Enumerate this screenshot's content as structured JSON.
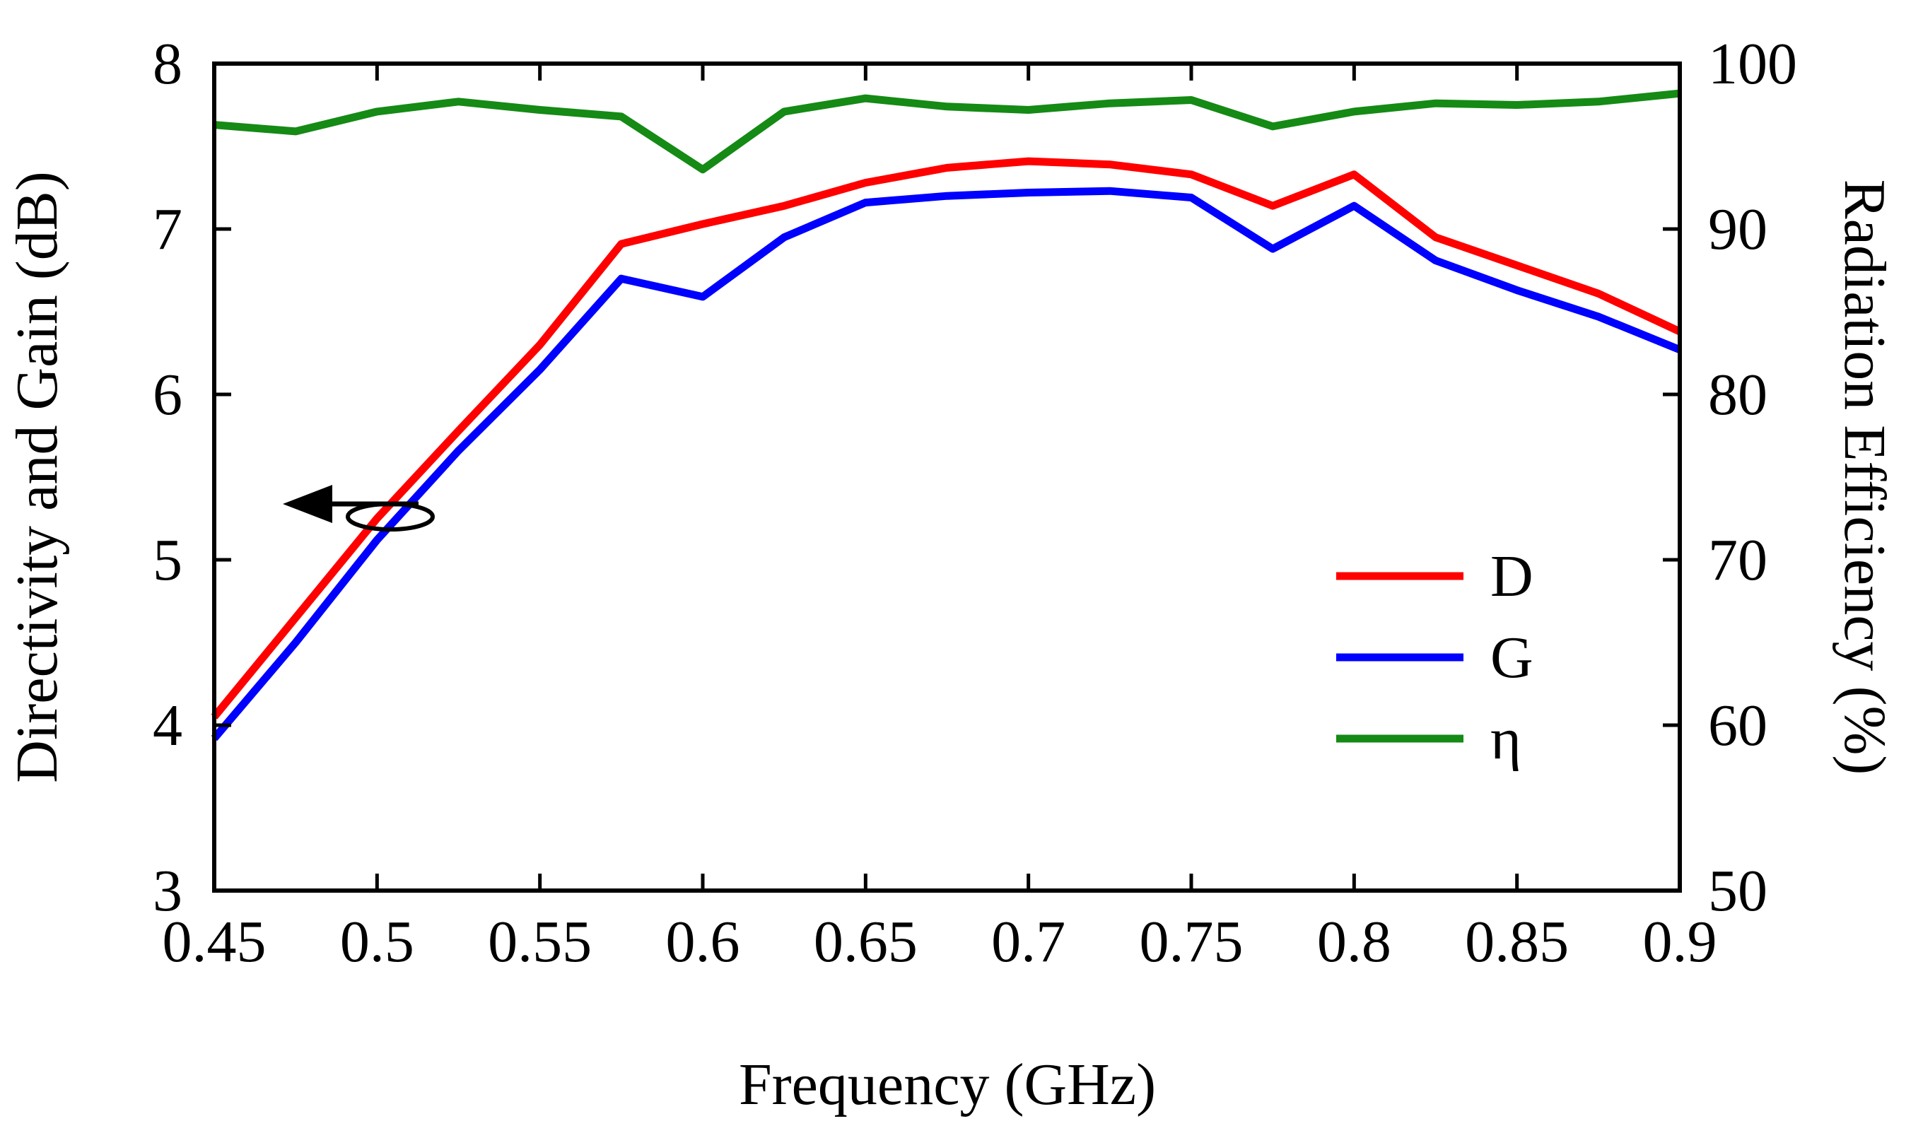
{
  "chart_data": {
    "type": "line",
    "xlabel": "Frequency (GHz)",
    "ylabel_left": "Directivity and Gain (dB)",
    "ylabel_right": "Radiation Efficiency (%)",
    "xlim": [
      0.45,
      0.9
    ],
    "ylim_left": [
      3,
      8
    ],
    "ylim_right": [
      50,
      100
    ],
    "x_ticks": [
      "0.45",
      "0.5",
      "0.55",
      "0.6",
      "0.65",
      "0.7",
      "0.75",
      "0.8",
      "0.85",
      "0.9"
    ],
    "y_left_ticks": [
      "3",
      "4",
      "5",
      "6",
      "7",
      "8"
    ],
    "y_right_ticks": [
      "50",
      "60",
      "70",
      "80",
      "90",
      "100"
    ],
    "grid": false,
    "legend_position": "right-middle",
    "annotation": "arrow pointing left indicating D and G curves use left axis",
    "series": [
      {
        "name": "D",
        "axis": "left",
        "color": "#ff0000",
        "x": [
          0.45,
          0.475,
          0.5,
          0.525,
          0.55,
          0.575,
          0.6,
          0.625,
          0.65,
          0.675,
          0.7,
          0.725,
          0.75,
          0.775,
          0.8,
          0.825,
          0.85,
          0.875,
          0.9
        ],
        "values": [
          4.05,
          4.65,
          5.25,
          5.78,
          6.3,
          6.91,
          7.03,
          7.14,
          7.28,
          7.37,
          7.41,
          7.39,
          7.33,
          7.14,
          7.33,
          6.95,
          6.78,
          6.61,
          6.38
        ]
      },
      {
        "name": "G",
        "axis": "left",
        "color": "#0000ff",
        "x": [
          0.45,
          0.475,
          0.5,
          0.525,
          0.55,
          0.575,
          0.6,
          0.625,
          0.65,
          0.675,
          0.7,
          0.725,
          0.75,
          0.775,
          0.8,
          0.825,
          0.85,
          0.875,
          0.9
        ],
        "values": [
          3.92,
          4.5,
          5.12,
          5.66,
          6.15,
          6.7,
          6.59,
          6.95,
          7.16,
          7.2,
          7.22,
          7.23,
          7.19,
          6.88,
          7.14,
          6.81,
          6.63,
          6.47,
          6.27
        ]
      },
      {
        "name": "η",
        "axis": "right",
        "color": "#158a15",
        "x": [
          0.45,
          0.475,
          0.5,
          0.525,
          0.55,
          0.575,
          0.6,
          0.625,
          0.65,
          0.675,
          0.7,
          0.725,
          0.75,
          0.775,
          0.8,
          0.825,
          0.85,
          0.875,
          0.9
        ],
        "values": [
          96.3,
          95.9,
          97.1,
          97.7,
          97.2,
          96.8,
          93.6,
          97.1,
          97.9,
          97.4,
          97.2,
          97.6,
          97.8,
          96.2,
          97.1,
          97.6,
          97.5,
          97.7,
          98.2
        ]
      }
    ]
  }
}
